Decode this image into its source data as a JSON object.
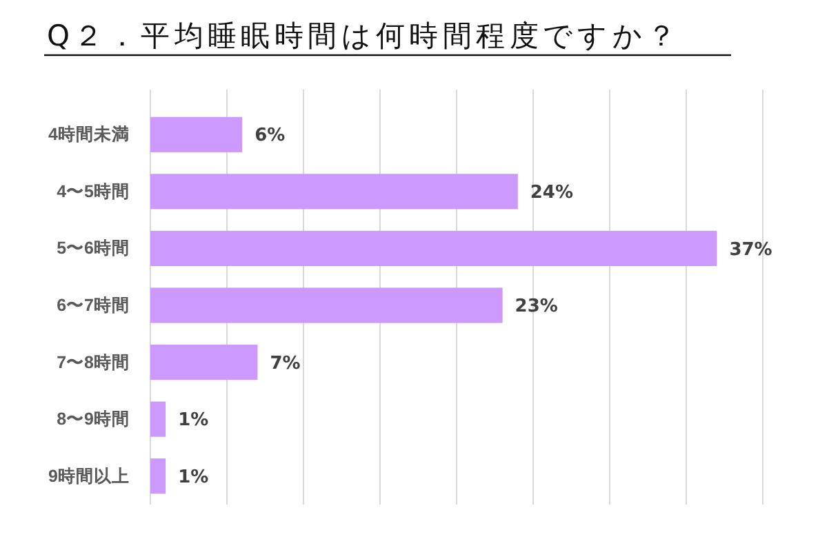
{
  "chart_data": {
    "type": "bar",
    "orientation": "horizontal",
    "title": "Q２．平均睡眠時間は何時間程度ですか？",
    "categories": [
      "4時間未満",
      "4〜5時間",
      "5〜6時間",
      "6〜7時間",
      "7〜8時間",
      "8〜9時間",
      "9時間以上"
    ],
    "values": [
      6,
      24,
      37,
      23,
      7,
      1,
      1
    ],
    "color": "#cc99ff",
    "xlim": [
      0,
      40
    ],
    "xticks": [
      {
        "value": 0,
        "label": null
      },
      {
        "value": 5,
        "label": null
      },
      {
        "value": 10,
        "label": null
      },
      {
        "value": 15,
        "label": null
      },
      {
        "value": 20,
        "label": null
      },
      {
        "value": 25,
        "label": null
      },
      {
        "value": 30,
        "label": null
      },
      {
        "value": 35,
        "label": null
      },
      {
        "value": 40,
        "label": null
      }
    ],
    "value_labels": [
      "6%",
      "24%",
      "37%",
      "23%",
      "7%",
      "1%",
      "1%"
    ],
    "grid": "x",
    "tick_labels": "y"
  }
}
